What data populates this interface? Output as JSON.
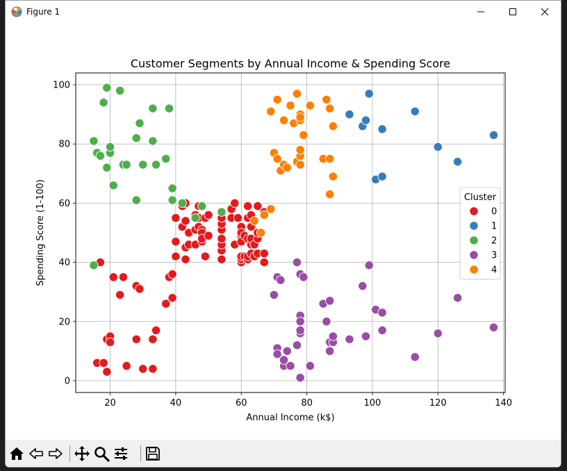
{
  "window": {
    "title": "Figure 1",
    "controls": [
      "minimize-icon",
      "maximize-icon",
      "close-icon"
    ]
  },
  "toolbar": {
    "buttons": [
      "home-icon",
      "back-arrow-icon",
      "forward-arrow-icon",
      "pan-move-icon",
      "zoom-magnifier-icon",
      "configure-subplots-icon",
      "save-floppy-icon"
    ]
  },
  "chart_data": {
    "type": "scatter",
    "title": "Customer Segments by Annual Income & Spending Score",
    "xlabel": "Annual Income (k$)",
    "ylabel": "Spending Score (1-100)",
    "xlim": [
      9.5,
      140.5
    ],
    "ylim": [
      -4,
      104
    ],
    "xticks": [
      20,
      40,
      60,
      80,
      100,
      120,
      140
    ],
    "yticks": [
      0,
      20,
      40,
      60,
      80,
      100
    ],
    "grid": true,
    "legend": {
      "title": "Cluster",
      "position": "right"
    },
    "series": [
      {
        "name": "0",
        "color": "#e41a1c",
        "points": [
          [
            16,
            6
          ],
          [
            18,
            6
          ],
          [
            19,
            3
          ],
          [
            19,
            14
          ],
          [
            20,
            15
          ],
          [
            20,
            13
          ],
          [
            25,
            5
          ],
          [
            28,
            14
          ],
          [
            30,
            4
          ],
          [
            33,
            4
          ],
          [
            33,
            14
          ],
          [
            34,
            17
          ],
          [
            17,
            40
          ],
          [
            21,
            35
          ],
          [
            24,
            35
          ],
          [
            23,
            29
          ],
          [
            28,
            32
          ],
          [
            29,
            31
          ],
          [
            37,
            26
          ],
          [
            38,
            35
          ],
          [
            39,
            36
          ],
          [
            39,
            28
          ],
          [
            40,
            42
          ],
          [
            40,
            47
          ],
          [
            40,
            55
          ],
          [
            42,
            52
          ],
          [
            42,
            59
          ],
          [
            43,
            60
          ],
          [
            43,
            45
          ],
          [
            43,
            41
          ],
          [
            43,
            54
          ],
          [
            44,
            50
          ],
          [
            44,
            46
          ],
          [
            46,
            51
          ],
          [
            46,
            46
          ],
          [
            46,
            56
          ],
          [
            47,
            55
          ],
          [
            47,
            52
          ],
          [
            47,
            59
          ],
          [
            48,
            51
          ],
          [
            48,
            50
          ],
          [
            48,
            47
          ],
          [
            48,
            48
          ],
          [
            48,
            59
          ],
          [
            49,
            42
          ],
          [
            49,
            55
          ],
          [
            50,
            56
          ],
          [
            50,
            49
          ],
          [
            54,
            41
          ],
          [
            54,
            44
          ],
          [
            54,
            46
          ],
          [
            54,
            48
          ],
          [
            54,
            51
          ],
          [
            54,
            53
          ],
          [
            54,
            55
          ],
          [
            57,
            58
          ],
          [
            57,
            55
          ],
          [
            58,
            60
          ],
          [
            58,
            46
          ],
          [
            59,
            55
          ],
          [
            60,
            40
          ],
          [
            60,
            41
          ],
          [
            60,
            42
          ],
          [
            60,
            49
          ],
          [
            60,
            52
          ],
          [
            60,
            47
          ],
          [
            60,
            50
          ],
          [
            61,
            42
          ],
          [
            61,
            49
          ],
          [
            62,
            41
          ],
          [
            62,
            42
          ],
          [
            62,
            48
          ],
          [
            62,
            59
          ],
          [
            62,
            55
          ],
          [
            63,
            56
          ],
          [
            63,
            46
          ],
          [
            63,
            43
          ],
          [
            63,
            48
          ],
          [
            63,
            52
          ],
          [
            64,
            42
          ],
          [
            64,
            46
          ],
          [
            65,
            48
          ],
          [
            65,
            50
          ],
          [
            65,
            43
          ],
          [
            65,
            59
          ],
          [
            67,
            40
          ],
          [
            67,
            43
          ],
          [
            67,
            57
          ]
        ]
      },
      {
        "name": "1",
        "color": "#377eb8",
        "points": [
          [
            93,
            90
          ],
          [
            97,
            86
          ],
          [
            98,
            88
          ],
          [
            99,
            97
          ],
          [
            101,
            68
          ],
          [
            103,
            85
          ],
          [
            103,
            69
          ],
          [
            113,
            91
          ],
          [
            120,
            79
          ],
          [
            126,
            74
          ],
          [
            137,
            83
          ]
        ]
      },
      {
        "name": "2",
        "color": "#4daf4a",
        "points": [
          [
            15,
            39
          ],
          [
            15,
            81
          ],
          [
            16,
            77
          ],
          [
            17,
            76
          ],
          [
            18,
            94
          ],
          [
            19,
            99
          ],
          [
            19,
            72
          ],
          [
            20,
            77
          ],
          [
            20,
            79
          ],
          [
            21,
            66
          ],
          [
            23,
            98
          ],
          [
            24,
            73
          ],
          [
            25,
            73
          ],
          [
            28,
            61
          ],
          [
            28,
            82
          ],
          [
            29,
            87
          ],
          [
            30,
            73
          ],
          [
            33,
            92
          ],
          [
            33,
            81
          ],
          [
            34,
            73
          ],
          [
            37,
            75
          ],
          [
            38,
            92
          ],
          [
            39,
            65
          ],
          [
            39,
            61
          ],
          [
            42,
            60
          ],
          [
            46,
            55
          ],
          [
            48,
            59
          ],
          [
            54,
            57
          ]
        ]
      },
      {
        "name": "3",
        "color": "#984ea3",
        "points": [
          [
            70,
            29
          ],
          [
            71,
            35
          ],
          [
            71,
            11
          ],
          [
            71,
            9
          ],
          [
            72,
            34
          ],
          [
            73,
            5
          ],
          [
            73,
            7
          ],
          [
            74,
            10
          ],
          [
            75,
            5
          ],
          [
            77,
            40
          ],
          [
            77,
            12
          ],
          [
            78,
            36
          ],
          [
            78,
            22
          ],
          [
            78,
            20
          ],
          [
            78,
            16
          ],
          [
            78,
            1
          ],
          [
            78,
            17
          ],
          [
            79,
            35
          ],
          [
            81,
            5
          ],
          [
            85,
            26
          ],
          [
            86,
            20
          ],
          [
            87,
            27
          ],
          [
            87,
            13
          ],
          [
            87,
            10
          ],
          [
            88,
            13
          ],
          [
            88,
            15
          ],
          [
            93,
            14
          ],
          [
            97,
            32
          ],
          [
            98,
            15
          ],
          [
            99,
            39
          ],
          [
            101,
            24
          ],
          [
            103,
            23
          ],
          [
            103,
            17
          ],
          [
            113,
            8
          ],
          [
            120,
            16
          ],
          [
            126,
            28
          ],
          [
            137,
            18
          ]
        ]
      },
      {
        "name": "4",
        "color": "#ff7f00",
        "points": [
          [
            69,
            91
          ],
          [
            70,
            77
          ],
          [
            71,
            95
          ],
          [
            71,
            75
          ],
          [
            72,
            71
          ],
          [
            73,
            88
          ],
          [
            73,
            73
          ],
          [
            74,
            72
          ],
          [
            75,
            93
          ],
          [
            76,
            87
          ],
          [
            77,
            74
          ],
          [
            77,
            97
          ],
          [
            78,
            90
          ],
          [
            78,
            88
          ],
          [
            78,
            89
          ],
          [
            78,
            73
          ],
          [
            78,
            76
          ],
          [
            78,
            78
          ],
          [
            79,
            83
          ],
          [
            81,
            93
          ],
          [
            85,
            75
          ],
          [
            86,
            95
          ],
          [
            87,
            63
          ],
          [
            87,
            75
          ],
          [
            87,
            92
          ],
          [
            88,
            86
          ],
          [
            88,
            69
          ],
          [
            64,
            54
          ],
          [
            66,
            50
          ],
          [
            67,
            56
          ],
          [
            69,
            58
          ]
        ]
      }
    ]
  }
}
